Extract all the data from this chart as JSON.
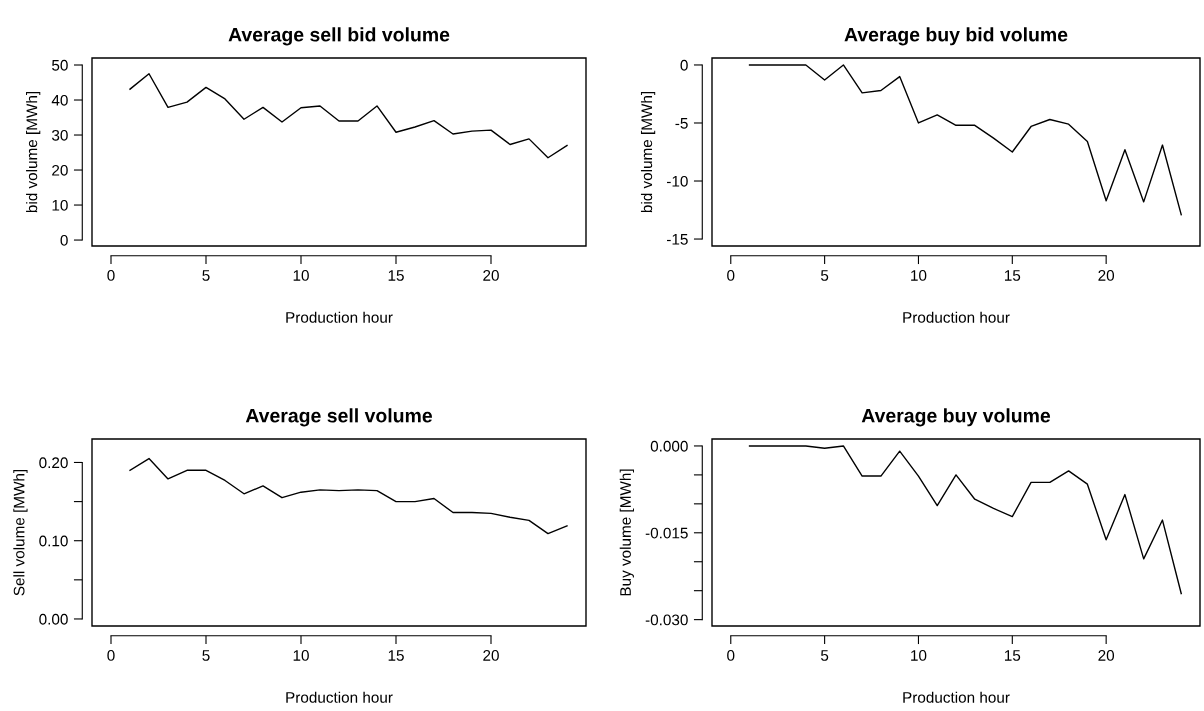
{
  "chart_data": [
    {
      "type": "line",
      "title": "Average sell bid volume",
      "xlabel": "Production hour",
      "ylabel": "bid volume [MWh]",
      "x": [
        1,
        2,
        3,
        4,
        5,
        6,
        7,
        8,
        9,
        10,
        11,
        12,
        13,
        14,
        15,
        16,
        17,
        18,
        19,
        20,
        21,
        22,
        23,
        24
      ],
      "series": [
        {
          "color": "#000000",
          "values": [
            43.1,
            47.5,
            37.9,
            39.4,
            43.6,
            40.3,
            34.5,
            37.9,
            33.7,
            37.8,
            38.3,
            34.0,
            34.0,
            38.3,
            30.8,
            32.3,
            34.1,
            30.3,
            31.1,
            31.4,
            27.3,
            28.9,
            23.5,
            27.0
          ]
        }
      ],
      "xlim": [
        -1,
        25
      ],
      "xticks": [
        0,
        5,
        10,
        15,
        20
      ],
      "ylim": [
        -1.7,
        52
      ],
      "yticks": [
        0,
        10,
        20,
        30,
        40,
        50
      ],
      "grid": false,
      "legend": false,
      "marker": "none",
      "line_style": "solid"
    },
    {
      "type": "line",
      "title": "Average buy bid volume",
      "xlabel": "Production hour",
      "ylabel": "bid volume [MWh]",
      "x": [
        1,
        2,
        3,
        4,
        5,
        6,
        7,
        8,
        9,
        10,
        11,
        12,
        13,
        14,
        15,
        16,
        17,
        18,
        19,
        20,
        21,
        22,
        23,
        24
      ],
      "series": [
        {
          "color": "#000000",
          "values": [
            0,
            0,
            0,
            0,
            -1.3,
            0,
            -2.4,
            -2.2,
            -1.0,
            -5.0,
            -4.3,
            -5.2,
            -5.2,
            -6.3,
            -7.5,
            -5.3,
            -4.7,
            -5.1,
            -6.6,
            -11.7,
            -7.3,
            -11.8,
            -6.9,
            -12.9
          ]
        }
      ],
      "xlim": [
        -1,
        25
      ],
      "xticks": [
        0,
        5,
        10,
        15,
        20
      ],
      "ylim": [
        -15.6,
        0.6
      ],
      "yticks": [
        {
          "value": -15,
          "label": "-15"
        },
        {
          "value": -10,
          "label": "-10"
        },
        {
          "value": -5,
          "label": "-5"
        },
        0
      ],
      "grid": false,
      "legend": false,
      "marker": "none",
      "line_style": "solid"
    },
    {
      "type": "line",
      "title": "Average sell volume",
      "xlabel": "Production hour",
      "ylabel": "Sell volume [MWh]",
      "x": [
        1,
        2,
        3,
        4,
        5,
        6,
        7,
        8,
        9,
        10,
        11,
        12,
        13,
        14,
        15,
        16,
        17,
        18,
        19,
        20,
        21,
        22,
        23,
        24
      ],
      "series": [
        {
          "color": "#000000",
          "values": [
            0.19,
            0.205,
            0.179,
            0.19,
            0.19,
            0.177,
            0.16,
            0.17,
            0.155,
            0.162,
            0.165,
            0.164,
            0.165,
            0.164,
            0.15,
            0.15,
            0.154,
            0.136,
            0.136,
            0.135,
            0.13,
            0.126,
            0.109,
            0.119
          ]
        }
      ],
      "xlim": [
        -1,
        25
      ],
      "xticks": [
        0,
        5,
        10,
        15,
        20
      ],
      "ylim": [
        -0.009,
        0.23
      ],
      "yticks": [
        {
          "value": 0,
          "label": "0.00"
        },
        {
          "value": 0.05,
          "label": null
        },
        {
          "value": 0.1,
          "label": "0.10"
        },
        {
          "value": 0.15,
          "label": null
        },
        {
          "value": 0.2,
          "label": "0.20"
        }
      ],
      "grid": false,
      "legend": false,
      "marker": "none",
      "line_style": "solid"
    },
    {
      "type": "line",
      "title": "Average buy volume",
      "xlabel": "Production hour",
      "ylabel": "Buy volume [MWh]",
      "x": [
        1,
        2,
        3,
        4,
        5,
        6,
        7,
        8,
        9,
        10,
        11,
        12,
        13,
        14,
        15,
        16,
        17,
        18,
        19,
        20,
        21,
        22,
        23,
        24
      ],
      "series": [
        {
          "color": "#000000",
          "values": [
            0,
            0,
            0,
            0,
            -0.0004,
            0,
            -0.0052,
            -0.0052,
            -0.0009,
            -0.0052,
            -0.0103,
            -0.005,
            -0.0092,
            -0.0108,
            -0.0122,
            -0.0063,
            -0.0063,
            -0.0043,
            -0.0066,
            -0.0162,
            -0.0084,
            -0.0195,
            -0.0128,
            -0.0255
          ]
        }
      ],
      "xlim": [
        -1,
        25
      ],
      "xticks": [
        0,
        5,
        10,
        15,
        20
      ],
      "ylim": [
        -0.0311,
        0.0012
      ],
      "yticks": [
        {
          "value": -0.03,
          "label": "-0.030"
        },
        {
          "value": -0.025,
          "label": null
        },
        {
          "value": -0.02,
          "label": null
        },
        {
          "value": -0.015,
          "label": "-0.015"
        },
        {
          "value": -0.01,
          "label": null
        },
        {
          "value": -0.005,
          "label": null
        },
        {
          "value": 0,
          "label": "0.000"
        }
      ],
      "grid": false,
      "legend": false,
      "marker": "none",
      "line_style": "solid"
    }
  ]
}
